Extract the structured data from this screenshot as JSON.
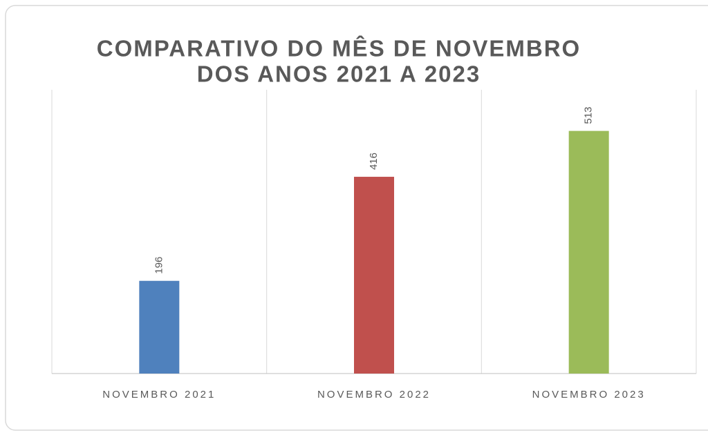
{
  "chart_data": {
    "type": "bar",
    "title": [
      "COMPARATIVO DO MÊS DE NOVEMBRO",
      "DOS ANOS 2021 A 2023"
    ],
    "categories": [
      "NOVEMBRO 2021",
      "NOVEMBRO 2022",
      "NOVEMBRO 2023"
    ],
    "values": [
      196,
      416,
      513
    ],
    "colors": [
      "#4f81bd",
      "#c0504d",
      "#9bbb59"
    ],
    "ylim": [
      0,
      600
    ]
  }
}
